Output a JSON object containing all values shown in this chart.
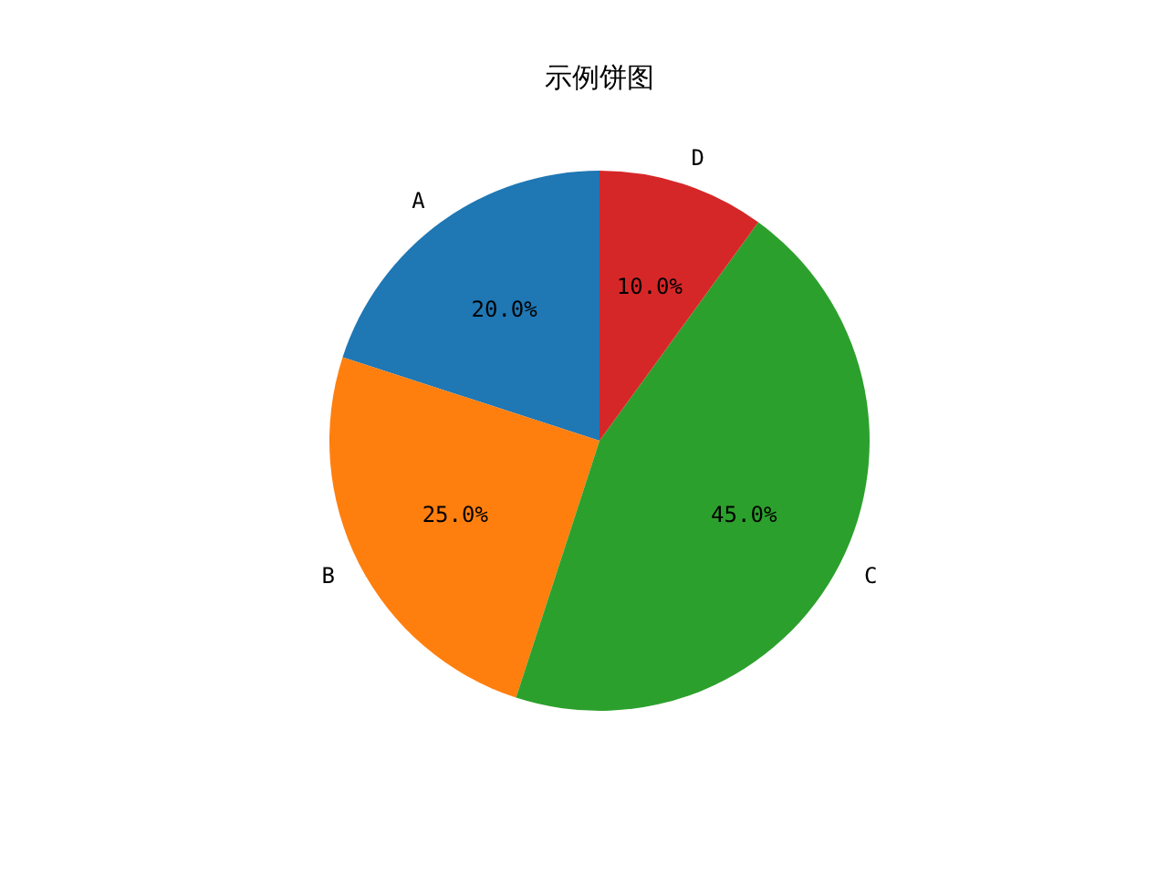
{
  "chart_data": {
    "type": "pie",
    "title": "示例饼图",
    "categories": [
      "A",
      "B",
      "C",
      "D"
    ],
    "values": [
      20,
      25,
      45,
      10
    ],
    "colors": [
      "#1f77b4",
      "#ff7f0e",
      "#2ca02c",
      "#d62728"
    ],
    "value_labels": [
      "20.0%",
      "25.0%",
      "45.0%",
      "10.0%"
    ]
  }
}
